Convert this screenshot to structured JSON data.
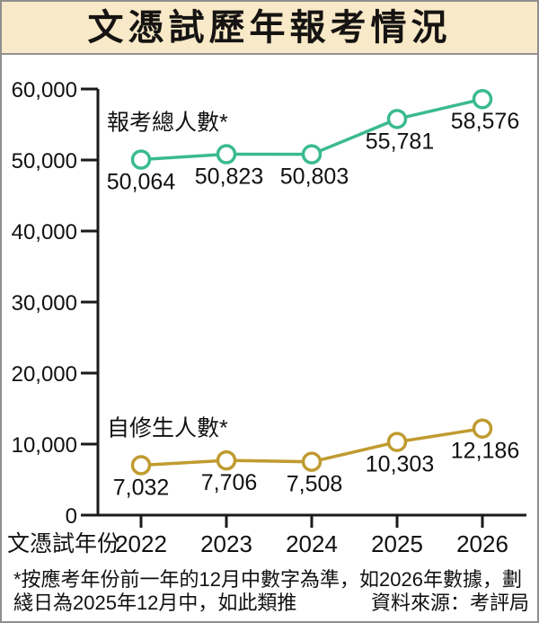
{
  "page": {
    "title": "文憑試歷年報考情況",
    "footnote_line1": "*按應考年份前一年的12月中數字為準，如2026年數據，劃",
    "footnote_line2": "綫日為2025年12月中，如此類推",
    "source": "資料來源：考評局"
  },
  "colors": {
    "title_band_bg": "#f8e9c8",
    "frame_border": "#8f8f8f",
    "axis": "#1a1a1a",
    "series_total": "#3aba90",
    "series_private": "#c09b30",
    "marker_fill": "#ffffff"
  },
  "chart_data": {
    "type": "line",
    "title": "文憑試歷年報考情況",
    "xlabel": "文憑試年份",
    "ylabel": "",
    "categories": [
      "2022",
      "2023",
      "2024",
      "2025",
      "2026"
    ],
    "series": [
      {
        "name": "報考總人數*",
        "values": [
          50064,
          50823,
          50803,
          55781,
          58576
        ],
        "labels": [
          "50,064",
          "50,823",
          "50,803",
          "55,781",
          "58,576"
        ],
        "color": "#3aba90"
      },
      {
        "name": "自修生人數*",
        "values": [
          7032,
          7706,
          7508,
          10303,
          12186
        ],
        "labels": [
          "7,032",
          "7,706",
          "7,508",
          "10,303",
          "12,186"
        ],
        "color": "#c09b30"
      }
    ],
    "ylim": [
      0,
      60000
    ],
    "ytick_step": 10000,
    "ytick_labels": [
      "0",
      "10,000",
      "20,000",
      "30,000",
      "40,000",
      "50,000",
      "60,000"
    ],
    "grid": false,
    "legend_position": "inline-labels-near-first-point"
  }
}
